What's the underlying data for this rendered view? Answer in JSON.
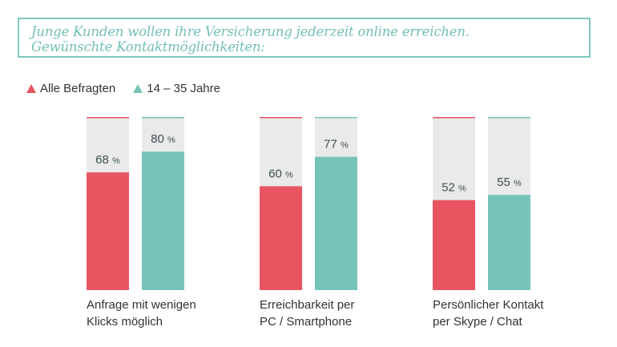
{
  "title": {
    "line1": "Junge Kunden wollen ihre Versicherung jederzeit online erreichen.",
    "line2": "Gewünschte Kontaktmöglichkeiten:"
  },
  "legend": [
    {
      "label": "Alle Befragten",
      "color": "#e85561"
    },
    {
      "label": "14 – 35 Jahre",
      "color": "#76c4b9"
    }
  ],
  "colors": {
    "background_bar": "#eaeaea",
    "value_text": "#3d4f52"
  },
  "chart_data": {
    "type": "bar",
    "title": "Junge Kunden wollen ihre Versicherung jederzeit online erreichen. Gewünschte Kontaktmöglichkeiten:",
    "xlabel": "",
    "ylabel": "",
    "ylim": [
      0,
      100
    ],
    "grid": false,
    "legend_position": "top-left",
    "categories": [
      [
        "Anfrage mit wenigen",
        "Klicks möglich"
      ],
      [
        "Erreichbarkeit per",
        "PC / Smartphone"
      ],
      [
        "Persönlicher Kontakt",
        "per Skype / Chat"
      ]
    ],
    "series": [
      {
        "name": "Alle Befragten",
        "color": "#e85561",
        "values": [
          68,
          60,
          52
        ]
      },
      {
        "name": "14 – 35 Jahre",
        "color": "#76c4b9",
        "values": [
          80,
          77,
          55
        ]
      }
    ],
    "unit": "%"
  }
}
